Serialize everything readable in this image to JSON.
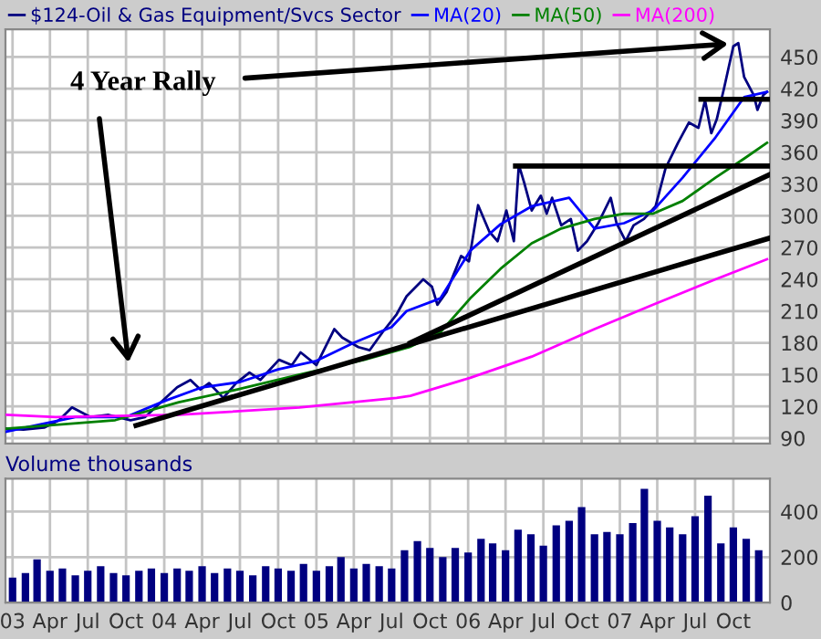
{
  "chart_data": [
    {
      "type": "line",
      "xlim": [
        "2002-12-15",
        "2007-12-28"
      ],
      "ylim": [
        85,
        476
      ],
      "yticks": [
        90,
        120,
        150,
        180,
        210,
        240,
        270,
        300,
        330,
        360,
        390,
        420,
        450
      ],
      "tick_labels": "y",
      "grid": true,
      "legend": "top",
      "annotations": [
        "4 Year Rally"
      ],
      "series": [
        {
          "name": "$124-Oil & Gas Equipment/Svcs Sector",
          "color": "#000080",
          "x": [
            "2002-12-15",
            "2003-01-27",
            "2003-03-18",
            "2003-04-23",
            "2003-05-24",
            "2003-07-07",
            "2003-08-20",
            "2003-10-12",
            "2003-11-16",
            "2003-12-16",
            "2004-02-01",
            "2004-03-04",
            "2004-03-28",
            "2004-04-18",
            "2004-05-22",
            "2004-06-22",
            "2004-07-24",
            "2004-08-19",
            "2004-10-03",
            "2004-11-03",
            "2004-11-24",
            "2005-01-01",
            "2005-02-13",
            "2005-03-04",
            "2005-04-12",
            "2005-05-09",
            "2005-06-09",
            "2005-07-13",
            "2005-08-06",
            "2005-09-15",
            "2005-10-06",
            "2005-10-19",
            "2005-11-10",
            "2005-12-15",
            "2006-01-03",
            "2006-01-25",
            "2006-02-21",
            "2006-03-13",
            "2006-04-03",
            "2006-04-21",
            "2006-05-03",
            "2006-05-16",
            "2006-06-03",
            "2006-06-25",
            "2006-07-09",
            "2006-07-22",
            "2006-08-13",
            "2006-09-05",
            "2006-09-22",
            "2006-10-14",
            "2006-11-10",
            "2006-12-10",
            "2006-12-24",
            "2007-01-15",
            "2007-02-03",
            "2007-02-28",
            "2007-03-28",
            "2007-04-21",
            "2007-05-21",
            "2007-06-16",
            "2007-07-09",
            "2007-07-25",
            "2007-08-09",
            "2007-08-22",
            "2007-09-09",
            "2007-10-01",
            "2007-10-13",
            "2007-10-27",
            "2007-11-19",
            "2007-11-28",
            "2007-12-12",
            "2007-12-21"
          ],
          "values": [
            99,
            98,
            100,
            107,
            119,
            110,
            112,
            107,
            110,
            121,
            138,
            145,
            136,
            142,
            128,
            142,
            152,
            145,
            164,
            159,
            171,
            159,
            193,
            185,
            176,
            173,
            190,
            207,
            224,
            240,
            233,
            216,
            228,
            262,
            257,
            310,
            285,
            276,
            305,
            276,
            348,
            331,
            305,
            319,
            302,
            317,
            291,
            297,
            267,
            276,
            293,
            317,
            293,
            276,
            291,
            297,
            309,
            345,
            369,
            388,
            383,
            409,
            378,
            391,
            421,
            460,
            463,
            431,
            414,
            400,
            414,
            417
          ]
        },
        {
          "name": "MA(20)",
          "color": "#0000ff",
          "x": [
            "2002-12-15",
            "2003-06-01",
            "2003-10-01",
            "2004-01-01",
            "2004-04-01",
            "2004-07-01",
            "2004-10-01",
            "2005-01-01",
            "2005-04-01",
            "2005-07-01",
            "2005-08-06",
            "2005-10-26",
            "2006-01-06",
            "2006-03-20",
            "2006-06-03",
            "2006-09-01",
            "2006-11-01",
            "2007-01-11",
            "2007-03-22",
            "2007-06-01",
            "2007-08-19",
            "2007-10-27",
            "2007-12-21"
          ],
          "values": [
            96,
            110,
            110,
            125,
            138,
            143,
            155,
            163,
            180,
            195,
            210,
            222,
            267,
            292,
            309,
            317,
            288,
            293,
            305,
            336,
            374,
            412,
            417
          ]
        },
        {
          "name": "MA(50)",
          "color": "#008000",
          "x": [
            "2002-12-15",
            "2003-09-05",
            "2004-02-05",
            "2004-06-25",
            "2004-11-21",
            "2005-04-26",
            "2005-08-13",
            "2005-10-26",
            "2006-01-06",
            "2006-03-20",
            "2006-06-03",
            "2006-08-13",
            "2006-11-01",
            "2007-01-11",
            "2007-03-22",
            "2007-06-01",
            "2007-08-19",
            "2007-10-27",
            "2007-12-21"
          ],
          "values": [
            99,
            107,
            124,
            136,
            150,
            164,
            176,
            190,
            222,
            250,
            274,
            288,
            297,
            302,
            302,
            314,
            336,
            354,
            369
          ]
        },
        {
          "name": "MA(200)",
          "color": "#ff00ff",
          "x": [
            "2002-12-15",
            "2003-04-15",
            "2004-02-05",
            "2004-11-21",
            "2005-07-13",
            "2005-08-15",
            "2006-01-06",
            "2006-06-03",
            "2006-11-01",
            "2007-03-22",
            "2007-08-19",
            "2007-12-21"
          ],
          "values": [
            112,
            110,
            112,
            119,
            128,
            130,
            147,
            167,
            193,
            216,
            240,
            259
          ]
        },
        {
          "color": "#000000",
          "x": [
            "2003-10-25",
            "2007-12-28"
          ],
          "values": [
            102,
            279
          ]
        },
        {
          "color": "#000000",
          "x": [
            "2005-08-15",
            "2007-12-28"
          ],
          "values": [
            180,
            339
          ]
        },
        {
          "color": "#000000",
          "x": [
            "2006-04-25",
            "2007-12-28"
          ],
          "values": [
            347,
            347
          ]
        },
        {
          "color": "#000000",
          "x": [
            "2007-07-15",
            "2007-12-28"
          ],
          "values": [
            410,
            410
          ]
        }
      ]
    },
    {
      "type": "bar",
      "title": "Volume thousands",
      "xlim": [
        "2002-12-15",
        "2007-12-28"
      ],
      "ylim": [
        0,
        545
      ],
      "yticks": [
        0,
        200,
        400
      ],
      "grid": true,
      "xticks": [
        {
          "value": "2003-01-01",
          "label": "03"
        },
        {
          "value": "2003-04-01",
          "label": "Apr"
        },
        {
          "value": "2003-07-01",
          "label": "Jul"
        },
        {
          "value": "2003-10-01",
          "label": "Oct"
        },
        {
          "value": "2004-01-01",
          "label": "04"
        },
        {
          "value": "2004-04-01",
          "label": "Apr"
        },
        {
          "value": "2004-07-01",
          "label": "Jul"
        },
        {
          "value": "2004-10-01",
          "label": "Oct"
        },
        {
          "value": "2005-01-01",
          "label": "05"
        },
        {
          "value": "2005-04-01",
          "label": "Apr"
        },
        {
          "value": "2005-07-01",
          "label": "Jul"
        },
        {
          "value": "2005-10-01",
          "label": "Oct"
        },
        {
          "value": "2006-01-01",
          "label": "06"
        },
        {
          "value": "2006-04-01",
          "label": "Apr"
        },
        {
          "value": "2006-07-01",
          "label": "Jul"
        },
        {
          "value": "2006-10-01",
          "label": "Oct"
        },
        {
          "value": "2007-01-01",
          "label": "07"
        },
        {
          "value": "2007-04-01",
          "label": "Apr"
        },
        {
          "value": "2007-07-01",
          "label": "Jul"
        },
        {
          "value": "2007-10-01",
          "label": "Oct"
        }
      ],
      "x": [
        "2003-01-01",
        "2003-02-01",
        "2003-03-01",
        "2003-04-01",
        "2003-05-01",
        "2003-06-01",
        "2003-07-01",
        "2003-08-01",
        "2003-09-01",
        "2003-10-01",
        "2003-11-01",
        "2003-12-01",
        "2004-01-01",
        "2004-02-01",
        "2004-03-01",
        "2004-04-01",
        "2004-05-01",
        "2004-06-01",
        "2004-07-01",
        "2004-08-01",
        "2004-09-01",
        "2004-10-01",
        "2004-11-01",
        "2004-12-01",
        "2005-01-01",
        "2005-02-01",
        "2005-03-01",
        "2005-04-01",
        "2005-05-01",
        "2005-06-01",
        "2005-07-01",
        "2005-08-01",
        "2005-09-01",
        "2005-10-01",
        "2005-11-01",
        "2005-12-01",
        "2006-01-01",
        "2006-02-01",
        "2006-03-01",
        "2006-04-01",
        "2006-05-01",
        "2006-06-01",
        "2006-07-01",
        "2006-08-01",
        "2006-09-01",
        "2006-10-01",
        "2006-11-01",
        "2006-12-01",
        "2007-01-01",
        "2007-02-01",
        "2007-03-01",
        "2007-04-01",
        "2007-05-01",
        "2007-06-01",
        "2007-07-01",
        "2007-08-01",
        "2007-09-01",
        "2007-10-01",
        "2007-11-01",
        "2007-12-01"
      ],
      "series": [
        {
          "color": "#000080",
          "values": [
            110,
            130,
            190,
            140,
            150,
            120,
            140,
            160,
            130,
            120,
            140,
            150,
            130,
            150,
            140,
            160,
            130,
            150,
            140,
            120,
            160,
            150,
            140,
            170,
            140,
            160,
            200,
            150,
            170,
            160,
            150,
            230,
            270,
            240,
            200,
            240,
            220,
            280,
            260,
            230,
            320,
            300,
            250,
            340,
            360,
            420,
            300,
            310,
            300,
            350,
            500,
            360,
            330,
            300,
            380,
            470,
            260,
            330,
            280,
            230
          ]
        }
      ]
    }
  ]
}
